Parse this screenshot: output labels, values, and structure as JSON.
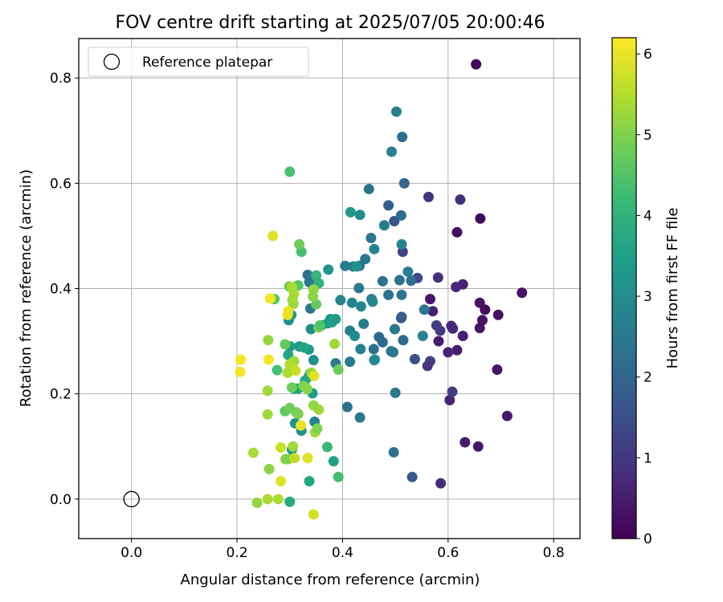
{
  "chart_data": {
    "type": "scatter",
    "title": "FOV centre drift starting at 2025/07/05 20:00:46",
    "xlabel": "Angular distance from reference (arcmin)",
    "ylabel": "Rotation from reference (arcmin)",
    "xlim": [
      -0.1,
      0.85
    ],
    "ylim": [
      -0.075,
      0.875
    ],
    "xticks": [
      "0.0",
      "0.2",
      "0.4",
      "0.6",
      "0.8"
    ],
    "yticks": [
      "0.0",
      "0.2",
      "0.4",
      "0.6",
      "0.8"
    ],
    "grid": true,
    "legend": {
      "placement": "top-left",
      "entries": [
        "Reference platepar"
      ]
    },
    "reference_point": {
      "x": 0.0,
      "y": 0.0
    },
    "colorbar": {
      "label": "Hours from first FF file",
      "range": [
        0,
        6.2
      ],
      "ticks": [
        "0",
        "1",
        "2",
        "3",
        "4",
        "5",
        "6"
      ],
      "colormap": "viridis"
    },
    "points": [
      [
        0.653,
        0.826,
        0.1
      ],
      [
        0.661,
        0.533,
        0.15
      ],
      [
        0.617,
        0.507,
        0.2
      ],
      [
        0.74,
        0.392,
        0.3
      ],
      [
        0.66,
        0.373,
        0.3
      ],
      [
        0.67,
        0.36,
        0.2
      ],
      [
        0.695,
        0.35,
        0.25
      ],
      [
        0.665,
        0.34,
        0.3
      ],
      [
        0.66,
        0.325,
        0.35
      ],
      [
        0.693,
        0.246,
        0.35
      ],
      [
        0.712,
        0.158,
        0.4
      ],
      [
        0.657,
        0.1,
        0.4
      ],
      [
        0.632,
        0.108,
        0.5
      ],
      [
        0.586,
        0.03,
        0.8
      ],
      [
        0.628,
        0.31,
        0.55
      ],
      [
        0.617,
        0.283,
        0.5
      ],
      [
        0.6,
        0.279,
        0.6
      ],
      [
        0.606,
        0.329,
        0.8
      ],
      [
        0.609,
        0.324,
        0.7
      ],
      [
        0.582,
        0.3,
        0.5
      ],
      [
        0.571,
        0.357,
        0.55
      ],
      [
        0.566,
        0.38,
        0.35
      ],
      [
        0.623,
        0.569,
        0.85
      ],
      [
        0.563,
        0.574,
        0.95
      ],
      [
        0.628,
        0.408,
        0.55
      ],
      [
        0.615,
        0.403,
        0.65
      ],
      [
        0.581,
        0.421,
        0.9
      ],
      [
        0.585,
        0.32,
        1.0
      ],
      [
        0.578,
        0.33,
        1.1
      ],
      [
        0.603,
        0.188,
        0.6
      ],
      [
        0.608,
        0.204,
        1.1
      ],
      [
        0.542,
        0.42,
        1.3
      ],
      [
        0.514,
        0.47,
        1.2
      ],
      [
        0.566,
        0.262,
        1.2
      ],
      [
        0.561,
        0.253,
        1.0
      ],
      [
        0.512,
        0.346,
        1.5
      ],
      [
        0.537,
        0.266,
        1.5
      ],
      [
        0.532,
        0.042,
        1.7
      ],
      [
        0.517,
        0.6,
        2.0
      ],
      [
        0.513,
        0.688,
        2.2
      ],
      [
        0.502,
        0.736,
        2.6
      ],
      [
        0.487,
        0.558,
        1.8
      ],
      [
        0.498,
        0.528,
        1.6
      ],
      [
        0.511,
        0.539,
        2.2
      ],
      [
        0.512,
        0.484,
        2.8
      ],
      [
        0.524,
        0.432,
        2.7
      ],
      [
        0.53,
        0.415,
        2.3
      ],
      [
        0.508,
        0.416,
        2.3
      ],
      [
        0.512,
        0.388,
        2.4
      ],
      [
        0.511,
        0.344,
        1.8
      ],
      [
        0.499,
        0.323,
        2.5
      ],
      [
        0.515,
        0.302,
        2.1
      ],
      [
        0.492,
        0.281,
        2.4
      ],
      [
        0.496,
        0.279,
        2.5
      ],
      [
        0.476,
        0.298,
        2.2
      ],
      [
        0.469,
        0.308,
        2.1
      ],
      [
        0.459,
        0.285,
        2.3
      ],
      [
        0.46,
        0.264,
        2.6
      ],
      [
        0.5,
        0.202,
        2.5
      ],
      [
        0.497,
        0.089,
        2.3
      ],
      [
        0.552,
        0.31,
        2.8
      ],
      [
        0.555,
        0.36,
        2.4
      ],
      [
        0.493,
        0.66,
        2.7
      ],
      [
        0.45,
        0.589,
        2.4
      ],
      [
        0.479,
        0.52,
        2.6
      ],
      [
        0.454,
        0.496,
        2.4
      ],
      [
        0.46,
        0.475,
        2.7
      ],
      [
        0.443,
        0.456,
        2.5
      ],
      [
        0.432,
        0.443,
        2.2
      ],
      [
        0.42,
        0.442,
        2.6
      ],
      [
        0.415,
        0.545,
        3.3
      ],
      [
        0.433,
        0.54,
        3.0
      ],
      [
        0.427,
        0.442,
        3.2
      ],
      [
        0.431,
        0.401,
        2.5
      ],
      [
        0.476,
        0.414,
        2.3
      ],
      [
        0.487,
        0.388,
        2.3
      ],
      [
        0.455,
        0.38,
        2.6
      ],
      [
        0.457,
        0.375,
        2.8
      ],
      [
        0.418,
        0.373,
        2.8
      ],
      [
        0.435,
        0.366,
        2.9
      ],
      [
        0.44,
        0.333,
        2.6
      ],
      [
        0.414,
        0.32,
        2.6
      ],
      [
        0.423,
        0.31,
        3.0
      ],
      [
        0.434,
        0.285,
        2.7
      ],
      [
        0.414,
        0.261,
        2.5
      ],
      [
        0.387,
        0.258,
        2.6
      ],
      [
        0.461,
        0.265,
        2.9
      ],
      [
        0.433,
        0.155,
        2.5
      ],
      [
        0.409,
        0.175,
        2.3
      ],
      [
        0.405,
        0.443,
        2.5
      ],
      [
        0.373,
        0.436,
        3.2
      ],
      [
        0.396,
        0.378,
        2.7
      ],
      [
        0.377,
        0.342,
        3.2
      ],
      [
        0.372,
        0.334,
        3.2
      ],
      [
        0.38,
        0.336,
        3.5
      ],
      [
        0.387,
        0.342,
        3.4
      ],
      [
        0.36,
        0.33,
        3.4
      ],
      [
        0.339,
        0.362,
        2.5
      ],
      [
        0.337,
        0.412,
        2.5
      ],
      [
        0.334,
        0.426,
        2.3
      ],
      [
        0.34,
        0.323,
        3.0
      ],
      [
        0.345,
        0.264,
        3.1
      ],
      [
        0.336,
        0.284,
        3.3
      ],
      [
        0.339,
        0.239,
        3.3
      ],
      [
        0.318,
        0.29,
        3.4
      ],
      [
        0.327,
        0.288,
        3.7
      ],
      [
        0.329,
        0.225,
        3.7
      ],
      [
        0.343,
        0.201,
        3.4
      ],
      [
        0.336,
        0.233,
        3.7
      ],
      [
        0.347,
        0.147,
        2.8
      ],
      [
        0.322,
        0.13,
        3.1
      ],
      [
        0.31,
        0.144,
        3.2
      ],
      [
        0.304,
        0.094,
        3.3
      ],
      [
        0.337,
        0.034,
        3.7
      ],
      [
        0.383,
        0.072,
        3.5
      ],
      [
        0.298,
        0.34,
        3.1
      ],
      [
        0.303,
        0.35,
        3.3
      ],
      [
        0.297,
        0.274,
        3.7
      ],
      [
        0.301,
        0.29,
        3.4
      ],
      [
        0.309,
        0.21,
        3.4
      ],
      [
        0.316,
        0.21,
        3.6
      ],
      [
        0.3,
        -0.005,
        3.8
      ],
      [
        0.371,
        0.099,
        4.1
      ],
      [
        0.392,
        0.042,
        4.3
      ],
      [
        0.3,
        0.622,
        4.4
      ],
      [
        0.322,
        0.47,
        4.3
      ],
      [
        0.35,
        0.425,
        4.1
      ],
      [
        0.355,
        0.41,
        4.0
      ],
      [
        0.318,
        0.484,
        4.8
      ],
      [
        0.316,
        0.406,
        4.5
      ],
      [
        0.299,
        0.404,
        4.8
      ],
      [
        0.271,
        0.38,
        4.6
      ],
      [
        0.291,
        0.294,
        4.7
      ],
      [
        0.276,
        0.245,
        4.3
      ],
      [
        0.304,
        0.212,
        4.8
      ],
      [
        0.312,
        0.165,
        4.8
      ],
      [
        0.291,
        0.167,
        4.6
      ],
      [
        0.3,
        0.173,
        4.8
      ],
      [
        0.326,
        0.215,
        5.0
      ],
      [
        0.333,
        0.209,
        5.1
      ],
      [
        0.355,
        0.326,
        5.1
      ],
      [
        0.357,
        0.33,
        4.5
      ],
      [
        0.35,
        0.37,
        4.7
      ],
      [
        0.392,
        0.246,
        4.8
      ],
      [
        0.385,
        0.295,
        5.3
      ],
      [
        0.345,
        0.398,
        5.2
      ],
      [
        0.344,
        0.385,
        5.1
      ],
      [
        0.355,
        0.17,
        5.3
      ],
      [
        0.348,
        0.127,
        5.3
      ],
      [
        0.352,
        0.134,
        5.0
      ],
      [
        0.341,
        0.24,
        5.3
      ],
      [
        0.345,
        0.178,
        5.2
      ],
      [
        0.307,
        0.371,
        5.2
      ],
      [
        0.308,
        0.39,
        5.4
      ],
      [
        0.305,
        0.379,
        5.3
      ],
      [
        0.304,
        0.403,
        5.4
      ],
      [
        0.308,
        0.262,
        5.3
      ],
      [
        0.3,
        0.256,
        5.5
      ],
      [
        0.296,
        0.24,
        5.4
      ],
      [
        0.316,
        0.162,
        5.0
      ],
      [
        0.259,
        0.302,
        5.2
      ],
      [
        0.258,
        0.206,
        5.3
      ],
      [
        0.258,
        0.161,
        5.3
      ],
      [
        0.306,
        0.1,
        5.3
      ],
      [
        0.297,
        0.076,
        5.2
      ],
      [
        0.261,
        0.057,
        5.1
      ],
      [
        0.292,
        0.076,
        5.0
      ],
      [
        0.231,
        0.088,
        5.4
      ],
      [
        0.238,
        -0.007,
        5.2
      ],
      [
        0.258,
        0.0,
        5.4
      ],
      [
        0.278,
        0.0,
        5.4
      ],
      [
        0.309,
        0.078,
        5.6
      ],
      [
        0.283,
        0.098,
        5.7
      ],
      [
        0.268,
        0.5,
        5.9
      ],
      [
        0.296,
        0.35,
        6.0
      ],
      [
        0.297,
        0.357,
        6.0
      ],
      [
        0.263,
        0.381,
        6.1
      ],
      [
        0.26,
        0.265,
        6.1
      ],
      [
        0.207,
        0.265,
        6.1
      ],
      [
        0.206,
        0.242,
        6.1
      ],
      [
        0.311,
        0.244,
        5.7
      ],
      [
        0.346,
        0.234,
        5.9
      ],
      [
        0.321,
        0.14,
        6.0
      ],
      [
        0.283,
        0.034,
        5.9
      ],
      [
        0.334,
        0.078,
        5.9
      ],
      [
        0.345,
        -0.029,
        5.8
      ]
    ]
  }
}
